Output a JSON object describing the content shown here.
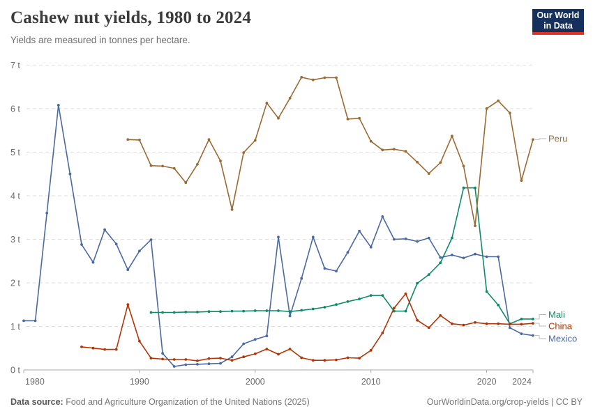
{
  "header": {
    "title": "Cashew nut yields, 1980 to 2024",
    "subtitle": "Yields are measured in tonnes per hectare."
  },
  "logo": {
    "line1": "Our World",
    "line2": "in Data"
  },
  "footer": {
    "source_label": "Data source:",
    "source_text": "Food and Agriculture Organization of the United Nations (2025)",
    "credit": "OurWorldinData.org/crop-yields | CC BY"
  },
  "chart_data": {
    "type": "line",
    "title": "Cashew nut yields, 1980 to 2024",
    "ylabel": "tonnes per hectare",
    "xlabel": "",
    "grid": true,
    "legend_position": "right-end-labels",
    "x_axis": {
      "min": 1980,
      "max": 2024,
      "ticks": [
        1980,
        1990,
        2000,
        2010,
        2020,
        2024
      ]
    },
    "y_axis": {
      "min": 0,
      "max": 7,
      "ticks": [
        0,
        1,
        2,
        3,
        4,
        5,
        6,
        7
      ],
      "tick_suffix": " t"
    },
    "colors": {
      "axis": "#a8a8a8",
      "grid": "#dedede",
      "tick_text": "#6b6b6b",
      "connector": "#b8b8b8"
    },
    "series": [
      {
        "name": "Mexico",
        "color": "#4a69a2",
        "points": [
          [
            1980,
            1.13
          ],
          [
            1981,
            1.13
          ],
          [
            1982,
            3.6
          ],
          [
            1983,
            6.08
          ],
          [
            1984,
            4.5
          ],
          [
            1985,
            2.88
          ],
          [
            1986,
            2.47
          ],
          [
            1987,
            3.22
          ],
          [
            1988,
            2.89
          ],
          [
            1989,
            2.3
          ],
          [
            1990,
            2.73
          ],
          [
            1991,
            2.99
          ],
          [
            1992,
            0.38
          ],
          [
            1993,
            0.08
          ],
          [
            1994,
            0.12
          ],
          [
            1995,
            0.13
          ],
          [
            1996,
            0.14
          ],
          [
            1997,
            0.15
          ],
          [
            1998,
            0.3
          ],
          [
            1999,
            0.6
          ],
          [
            2000,
            0.7
          ],
          [
            2001,
            0.78
          ],
          [
            2002,
            3.05
          ],
          [
            2003,
            1.24
          ],
          [
            2004,
            2.1
          ],
          [
            2005,
            3.05
          ],
          [
            2006,
            2.33
          ],
          [
            2007,
            2.27
          ],
          [
            2008,
            2.7
          ],
          [
            2009,
            3.19
          ],
          [
            2010,
            2.82
          ],
          [
            2011,
            3.52
          ],
          [
            2012,
            3.0
          ],
          [
            2013,
            3.01
          ],
          [
            2014,
            2.95
          ],
          [
            2015,
            3.03
          ],
          [
            2016,
            2.58
          ],
          [
            2017,
            2.64
          ],
          [
            2018,
            2.57
          ],
          [
            2019,
            2.66
          ],
          [
            2020,
            2.6
          ],
          [
            2021,
            2.6
          ],
          [
            2022,
            0.97
          ],
          [
            2023,
            0.83
          ],
          [
            2024,
            0.79
          ]
        ]
      },
      {
        "name": "Mali",
        "color": "#0f8a67",
        "points": [
          [
            1991,
            1.32
          ],
          [
            1992,
            1.32
          ],
          [
            1993,
            1.32
          ],
          [
            1994,
            1.33
          ],
          [
            1995,
            1.33
          ],
          [
            1996,
            1.34
          ],
          [
            1997,
            1.34
          ],
          [
            1998,
            1.35
          ],
          [
            1999,
            1.35
          ],
          [
            2000,
            1.36
          ],
          [
            2001,
            1.36
          ],
          [
            2002,
            1.36
          ],
          [
            2003,
            1.34
          ],
          [
            2004,
            1.37
          ],
          [
            2005,
            1.4
          ],
          [
            2006,
            1.44
          ],
          [
            2007,
            1.5
          ],
          [
            2008,
            1.57
          ],
          [
            2009,
            1.63
          ],
          [
            2010,
            1.71
          ],
          [
            2011,
            1.71
          ],
          [
            2012,
            1.35
          ],
          [
            2013,
            1.35
          ],
          [
            2014,
            1.99
          ],
          [
            2015,
            2.19
          ],
          [
            2016,
            2.46
          ],
          [
            2017,
            3.03
          ],
          [
            2018,
            4.18
          ],
          [
            2019,
            4.18
          ],
          [
            2020,
            1.8
          ],
          [
            2021,
            1.49
          ],
          [
            2022,
            1.06
          ],
          [
            2023,
            1.17
          ],
          [
            2024,
            1.17
          ]
        ]
      },
      {
        "name": "China",
        "color": "#b13507",
        "points": [
          [
            1985,
            0.53
          ],
          [
            1986,
            0.5
          ],
          [
            1987,
            0.47
          ],
          [
            1988,
            0.47
          ],
          [
            1989,
            1.5
          ],
          [
            1990,
            0.66
          ],
          [
            1991,
            0.27
          ],
          [
            1992,
            0.25
          ],
          [
            1993,
            0.24
          ],
          [
            1994,
            0.24
          ],
          [
            1995,
            0.21
          ],
          [
            1996,
            0.26
          ],
          [
            1997,
            0.27
          ],
          [
            1998,
            0.22
          ],
          [
            1999,
            0.3
          ],
          [
            2000,
            0.37
          ],
          [
            2001,
            0.48
          ],
          [
            2002,
            0.36
          ],
          [
            2003,
            0.48
          ],
          [
            2004,
            0.28
          ],
          [
            2005,
            0.22
          ],
          [
            2006,
            0.22
          ],
          [
            2007,
            0.23
          ],
          [
            2008,
            0.28
          ],
          [
            2009,
            0.27
          ],
          [
            2010,
            0.45
          ],
          [
            2011,
            0.85
          ],
          [
            2012,
            1.42
          ],
          [
            2013,
            1.75
          ],
          [
            2014,
            1.14
          ],
          [
            2015,
            0.97
          ],
          [
            2016,
            1.25
          ],
          [
            2017,
            1.06
          ],
          [
            2018,
            1.03
          ],
          [
            2019,
            1.09
          ],
          [
            2020,
            1.06
          ],
          [
            2021,
            1.06
          ],
          [
            2022,
            1.05
          ],
          [
            2023,
            1.05
          ],
          [
            2024,
            1.07
          ]
        ]
      },
      {
        "name": "Peru",
        "color": "#9a6a33",
        "points": [
          [
            1989,
            5.29
          ],
          [
            1990,
            5.28
          ],
          [
            1991,
            4.69
          ],
          [
            1992,
            4.68
          ],
          [
            1993,
            4.63
          ],
          [
            1994,
            4.3
          ],
          [
            1995,
            4.72
          ],
          [
            1996,
            5.29
          ],
          [
            1997,
            4.8
          ],
          [
            1998,
            3.68
          ],
          [
            1999,
            4.99
          ],
          [
            2000,
            5.27
          ],
          [
            2001,
            6.13
          ],
          [
            2002,
            5.78
          ],
          [
            2003,
            6.24
          ],
          [
            2004,
            6.72
          ],
          [
            2005,
            6.66
          ],
          [
            2006,
            6.71
          ],
          [
            2007,
            6.71
          ],
          [
            2008,
            5.76
          ],
          [
            2009,
            5.78
          ],
          [
            2010,
            5.25
          ],
          [
            2011,
            5.05
          ],
          [
            2012,
            5.07
          ],
          [
            2013,
            5.02
          ],
          [
            2014,
            4.77
          ],
          [
            2015,
            4.51
          ],
          [
            2016,
            4.76
          ],
          [
            2017,
            5.37
          ],
          [
            2018,
            4.68
          ],
          [
            2019,
            3.31
          ],
          [
            2020,
            6.0
          ],
          [
            2021,
            6.18
          ],
          [
            2022,
            5.9
          ],
          [
            2023,
            4.35
          ],
          [
            2024,
            5.29
          ]
        ]
      }
    ]
  }
}
